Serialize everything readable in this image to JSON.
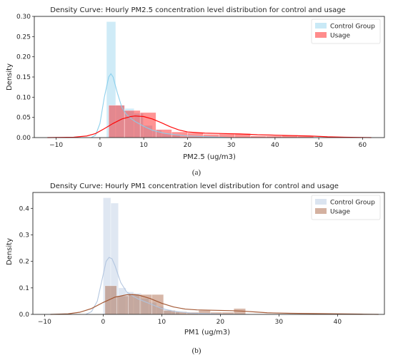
{
  "chart_data": [
    {
      "type": "histogram_density",
      "title": "Density Curve: Hourly PM2.5 concentration level distribution for control and usage",
      "xlabel": "PM2.5 (ug/m3)",
      "ylabel": "Density",
      "xlim": [
        -15,
        65
      ],
      "ylim": [
        0,
        0.3
      ],
      "x_ticks": [
        -10,
        0,
        10,
        20,
        30,
        40,
        50,
        60
      ],
      "y_ticks": [
        0.0,
        0.05,
        0.1,
        0.15,
        0.2,
        0.25,
        0.3
      ],
      "legend_position": "top-right",
      "grid": false,
      "series": [
        {
          "name": "Control Group",
          "color": "#87ceeb",
          "bins": [
            {
              "x0": 1.5,
              "x1": 3.6,
              "h": 0.287
            },
            {
              "x0": 3.6,
              "x1": 5.7,
              "h": 0.08
            },
            {
              "x0": 5.7,
              "x1": 7.8,
              "h": 0.072
            },
            {
              "x0": 7.8,
              "x1": 9.9,
              "h": 0.06
            },
            {
              "x0": 9.9,
              "x1": 12.0,
              "h": 0.03
            },
            {
              "x0": 12.0,
              "x1": 14.1,
              "h": 0.018
            },
            {
              "x0": 14.1,
              "x1": 16.2,
              "h": 0.01
            },
            {
              "x0": 16.2,
              "x1": 18.3,
              "h": 0.006
            }
          ],
          "kde": [
            [
              -2,
              0
            ],
            [
              -1,
              0.006
            ],
            [
              0,
              0.035
            ],
            [
              1,
              0.1
            ],
            [
              2,
              0.15
            ],
            [
              2.5,
              0.158
            ],
            [
              3,
              0.15
            ],
            [
              4,
              0.11
            ],
            [
              5,
              0.075
            ],
            [
              6,
              0.058
            ],
            [
              7,
              0.048
            ],
            [
              8,
              0.04
            ],
            [
              10,
              0.028
            ],
            [
              12,
              0.018
            ],
            [
              15,
              0.01
            ],
            [
              20,
              0.004
            ],
            [
              25,
              0.002
            ],
            [
              30,
              0
            ]
          ]
        },
        {
          "name": "Usage",
          "color": "#ff0000",
          "bins": [
            {
              "x0": 2.0,
              "x1": 5.6,
              "h": 0.08
            },
            {
              "x0": 5.6,
              "x1": 9.2,
              "h": 0.067
            },
            {
              "x0": 9.2,
              "x1": 12.8,
              "h": 0.062
            },
            {
              "x0": 12.8,
              "x1": 16.4,
              "h": 0.02
            },
            {
              "x0": 16.4,
              "x1": 20.0,
              "h": 0.014
            },
            {
              "x0": 20.0,
              "x1": 23.6,
              "h": 0.012
            },
            {
              "x0": 23.6,
              "x1": 27.2,
              "h": 0.008
            },
            {
              "x0": 27.2,
              "x1": 30.8,
              "h": 0.009
            },
            {
              "x0": 30.8,
              "x1": 34.4,
              "h": 0.01
            },
            {
              "x0": 34.4,
              "x1": 38.0,
              "h": 0.004
            },
            {
              "x0": 38.0,
              "x1": 41.6,
              "h": 0.004
            },
            {
              "x0": 41.6,
              "x1": 45.2,
              "h": 0.006
            },
            {
              "x0": 45.2,
              "x1": 48.8,
              "h": 0.004
            }
          ],
          "kde": [
            [
              -12,
              0
            ],
            [
              -6,
              0.001
            ],
            [
              -3,
              0.004
            ],
            [
              -1,
              0.01
            ],
            [
              1,
              0.022
            ],
            [
              3,
              0.035
            ],
            [
              5,
              0.046
            ],
            [
              7,
              0.052
            ],
            [
              8,
              0.0535
            ],
            [
              10,
              0.052
            ],
            [
              12,
              0.046
            ],
            [
              14,
              0.037
            ],
            [
              16,
              0.027
            ],
            [
              18,
              0.019
            ],
            [
              20,
              0.014
            ],
            [
              24,
              0.011
            ],
            [
              28,
              0.01
            ],
            [
              32,
              0.009
            ],
            [
              36,
              0.007
            ],
            [
              40,
              0.006
            ],
            [
              44,
              0.005
            ],
            [
              48,
              0.004
            ],
            [
              52,
              0.002
            ],
            [
              56,
              0.001
            ],
            [
              62,
              0
            ]
          ]
        }
      ],
      "panel_label": "(a)"
    },
    {
      "type": "histogram_density",
      "title": "Density Curve: Hourly PM1 concentration level distribution for control and usage",
      "xlabel": "PM1 (ug/m3)",
      "ylabel": "Density",
      "xlim": [
        -12,
        48
      ],
      "ylim": [
        0,
        0.46
      ],
      "x_ticks": [
        -10,
        0,
        10,
        20,
        30,
        40
      ],
      "y_ticks": [
        0.0,
        0.1,
        0.2,
        0.3,
        0.4
      ],
      "legend_position": "top-right",
      "grid": false,
      "series": [
        {
          "name": "Control Group",
          "color": "#b0c4de",
          "bins": [
            {
              "x0": 0.0,
              "x1": 1.3,
              "h": 0.44
            },
            {
              "x0": 1.3,
              "x1": 2.6,
              "h": 0.42
            },
            {
              "x0": 2.6,
              "x1": 3.9,
              "h": 0.1
            },
            {
              "x0": 3.9,
              "x1": 5.2,
              "h": 0.085
            },
            {
              "x0": 5.2,
              "x1": 6.5,
              "h": 0.08
            },
            {
              "x0": 6.5,
              "x1": 7.8,
              "h": 0.06
            },
            {
              "x0": 7.8,
              "x1": 9.1,
              "h": 0.045
            },
            {
              "x0": 9.1,
              "x1": 10.4,
              "h": 0.03
            },
            {
              "x0": 10.4,
              "x1": 11.7,
              "h": 0.018
            },
            {
              "x0": 11.7,
              "x1": 13.0,
              "h": 0.01
            }
          ],
          "kde": [
            [
              -3,
              0
            ],
            [
              -2,
              0.01
            ],
            [
              -1,
              0.05
            ],
            [
              0,
              0.15
            ],
            [
              0.5,
              0.2
            ],
            [
              1,
              0.215
            ],
            [
              1.5,
              0.21
            ],
            [
              2,
              0.185
            ],
            [
              3,
              0.12
            ],
            [
              4,
              0.085
            ],
            [
              5,
              0.07
            ],
            [
              6,
              0.058
            ],
            [
              8,
              0.04
            ],
            [
              10,
              0.022
            ],
            [
              12,
              0.012
            ],
            [
              15,
              0.005
            ],
            [
              20,
              0.001
            ],
            [
              25,
              0
            ]
          ]
        },
        {
          "name": "Usage",
          "color": "#a0522d",
          "bins": [
            {
              "x0": 0.3,
              "x1": 2.3,
              "h": 0.108
            },
            {
              "x0": 2.3,
              "x1": 4.3,
              "h": 0.07
            },
            {
              "x0": 4.3,
              "x1": 6.3,
              "h": 0.075
            },
            {
              "x0": 6.3,
              "x1": 8.3,
              "h": 0.075
            },
            {
              "x0": 8.3,
              "x1": 10.3,
              "h": 0.075
            },
            {
              "x0": 10.3,
              "x1": 12.3,
              "h": 0.015
            },
            {
              "x0": 12.3,
              "x1": 14.3,
              "h": 0.01
            },
            {
              "x0": 14.3,
              "x1": 16.3,
              "h": 0.008
            },
            {
              "x0": 16.3,
              "x1": 18.3,
              "h": 0.015
            },
            {
              "x0": 18.3,
              "x1": 20.3,
              "h": 0.008
            },
            {
              "x0": 20.3,
              "x1": 22.3,
              "h": 0.008
            },
            {
              "x0": 22.3,
              "x1": 24.3,
              "h": 0.022
            }
          ],
          "kde": [
            [
              -9,
              0
            ],
            [
              -6,
              0.002
            ],
            [
              -4,
              0.008
            ],
            [
              -2,
              0.022
            ],
            [
              0,
              0.045
            ],
            [
              2,
              0.065
            ],
            [
              4,
              0.074
            ],
            [
              5,
              0.075
            ],
            [
              6,
              0.073
            ],
            [
              8,
              0.06
            ],
            [
              10,
              0.042
            ],
            [
              12,
              0.028
            ],
            [
              14,
              0.02
            ],
            [
              16,
              0.017
            ],
            [
              18,
              0.016
            ],
            [
              20,
              0.015
            ],
            [
              22,
              0.014
            ],
            [
              24,
              0.012
            ],
            [
              26,
              0.009
            ],
            [
              28,
              0.006
            ],
            [
              32,
              0.004
            ],
            [
              36,
              0.003
            ],
            [
              40,
              0.002
            ],
            [
              44,
              0.001
            ],
            [
              47,
              0
            ]
          ]
        }
      ],
      "panel_label": "(b)"
    }
  ]
}
